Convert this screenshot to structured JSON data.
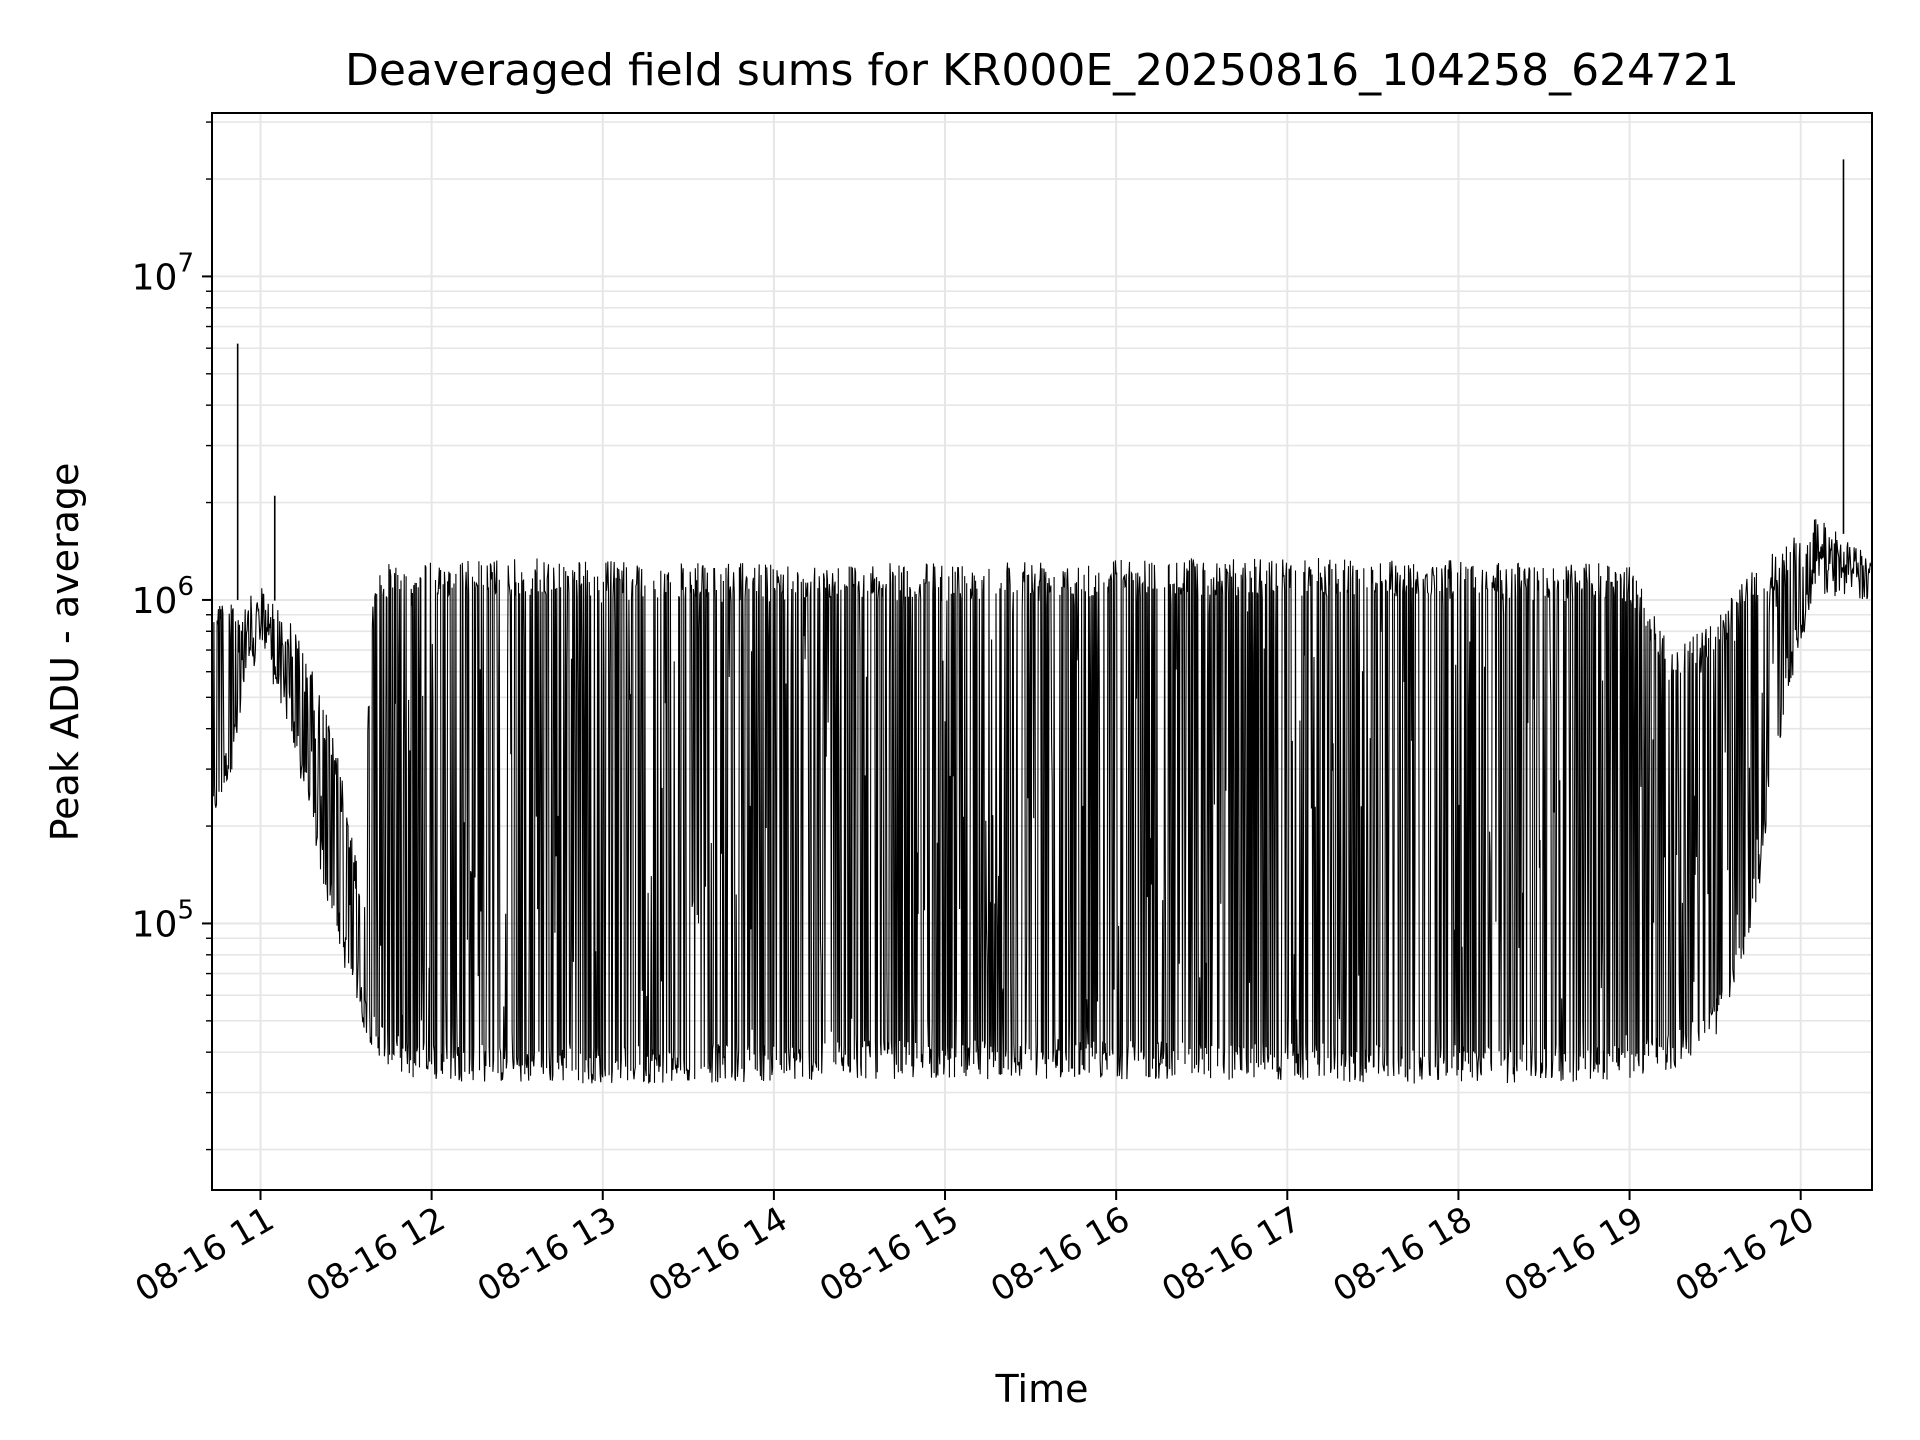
{
  "chart_data": {
    "type": "line",
    "title": "Deaveraged field sums for KR000E_20250816_104258_624721",
    "xlabel": "Time",
    "ylabel": "Peak ADU - average",
    "yscale": "log",
    "xlim": [
      "2025-08-16 10:43",
      "2025-08-16 20:25"
    ],
    "ylim": [
      15000,
      32000000
    ],
    "grid": true,
    "legend": "none",
    "colors": {
      "line": "#000000",
      "grid": "#e6e6e6",
      "axes": "#000000"
    },
    "x_ticks": [
      {
        "value": "2025-08-16 11:00",
        "label": "08-16 11"
      },
      {
        "value": "2025-08-16 12:00",
        "label": "08-16 12"
      },
      {
        "value": "2025-08-16 13:00",
        "label": "08-16 13"
      },
      {
        "value": "2025-08-16 14:00",
        "label": "08-16 14"
      },
      {
        "value": "2025-08-16 15:00",
        "label": "08-16 15"
      },
      {
        "value": "2025-08-16 16:00",
        "label": "08-16 16"
      },
      {
        "value": "2025-08-16 17:00",
        "label": "08-16 17"
      },
      {
        "value": "2025-08-16 18:00",
        "label": "08-16 18"
      },
      {
        "value": "2025-08-16 19:00",
        "label": "08-16 19"
      },
      {
        "value": "2025-08-16 20:00",
        "label": "08-16 20"
      }
    ],
    "y_ticks": [
      {
        "value": 100000,
        "base": "10",
        "exp": "5"
      },
      {
        "value": 1000000,
        "base": "10",
        "exp": "6"
      },
      {
        "value": 10000000,
        "base": "10",
        "exp": "7"
      }
    ],
    "series": [
      {
        "name": "",
        "envelope": [
          {
            "time": "2025-08-16 10:43",
            "low": 200000,
            "high": 1100000
          },
          {
            "time": "2025-08-16 10:50",
            "low": 300000,
            "high": 1000000
          },
          {
            "time": "2025-08-16 10:55",
            "low": 500000,
            "high": 1000000
          },
          {
            "time": "2025-08-16 11:00",
            "low": 700000,
            "high": 1100000
          },
          {
            "time": "2025-08-16 11:10",
            "low": 400000,
            "high": 900000
          },
          {
            "time": "2025-08-16 11:15",
            "low": 250000,
            "high": 700000
          },
          {
            "time": "2025-08-16 11:20",
            "low": 160000,
            "high": 550000
          },
          {
            "time": "2025-08-16 11:25",
            "low": 100000,
            "high": 400000
          },
          {
            "time": "2025-08-16 11:30",
            "low": 70000,
            "high": 250000
          },
          {
            "time": "2025-08-16 11:35",
            "low": 50000,
            "high": 130000
          },
          {
            "time": "2025-08-16 11:40",
            "low": 40000,
            "high": 1300000
          },
          {
            "time": "2025-08-16 11:50",
            "low": 33000,
            "high": 1300000
          },
          {
            "time": "2025-08-16 12:30",
            "low": 32000,
            "high": 1350000
          },
          {
            "time": "2025-08-16 13:30",
            "low": 32000,
            "high": 1300000
          },
          {
            "time": "2025-08-16 14:30",
            "low": 33000,
            "high": 1300000
          },
          {
            "time": "2025-08-16 15:00",
            "low": 33000,
            "high": 1300000
          },
          {
            "time": "2025-08-16 15:30",
            "low": 33000,
            "high": 1350000
          },
          {
            "time": "2025-08-16 16:30",
            "low": 33000,
            "high": 1350000
          },
          {
            "time": "2025-08-16 17:30",
            "low": 32000,
            "high": 1350000
          },
          {
            "time": "2025-08-16 18:30",
            "low": 32000,
            "high": 1300000
          },
          {
            "time": "2025-08-16 19:00",
            "low": 33000,
            "high": 1300000
          },
          {
            "time": "2025-08-16 19:15",
            "low": 35000,
            "high": 700000
          },
          {
            "time": "2025-08-16 19:25",
            "low": 40000,
            "high": 800000
          },
          {
            "time": "2025-08-16 19:35",
            "low": 50000,
            "high": 1000000
          },
          {
            "time": "2025-08-16 19:45",
            "low": 120000,
            "high": 1300000
          },
          {
            "time": "2025-08-16 19:55",
            "low": 500000,
            "high": 1500000
          },
          {
            "time": "2025-08-16 20:05",
            "low": 1000000,
            "high": 1800000
          },
          {
            "time": "2025-08-16 20:15",
            "low": 1000000,
            "high": 1600000
          },
          {
            "time": "2025-08-16 20:25",
            "low": 1000000,
            "high": 1400000
          }
        ],
        "peaks": [
          {
            "time": "2025-08-16 10:52",
            "value": 6200000
          },
          {
            "time": "2025-08-16 11:05",
            "value": 2100000
          },
          {
            "time": "2025-08-16 20:15",
            "value": 23000000
          }
        ]
      }
    ]
  }
}
